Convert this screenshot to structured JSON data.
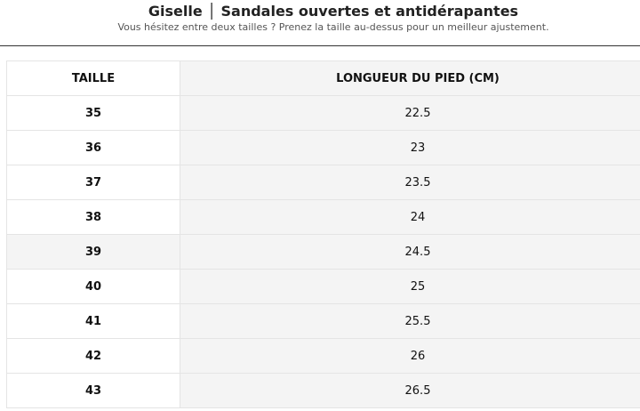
{
  "header": {
    "title": "Giselle │ Sandales ouvertes et antidérapantes",
    "subtitle": "Vous hésitez entre deux tailles ? Prenez la taille au-dessus pour un meilleur ajustement."
  },
  "table": {
    "columns": [
      "TAILLE",
      "LONGUEUR DU PIED (CM)"
    ],
    "rows": [
      [
        "35",
        "22.5"
      ],
      [
        "36",
        "23"
      ],
      [
        "37",
        "23.5"
      ],
      [
        "38",
        "24"
      ],
      [
        "39",
        "24.5"
      ],
      [
        "40",
        "25"
      ],
      [
        "41",
        "25.5"
      ],
      [
        "42",
        "26"
      ],
      [
        "43",
        "26.5"
      ]
    ]
  }
}
